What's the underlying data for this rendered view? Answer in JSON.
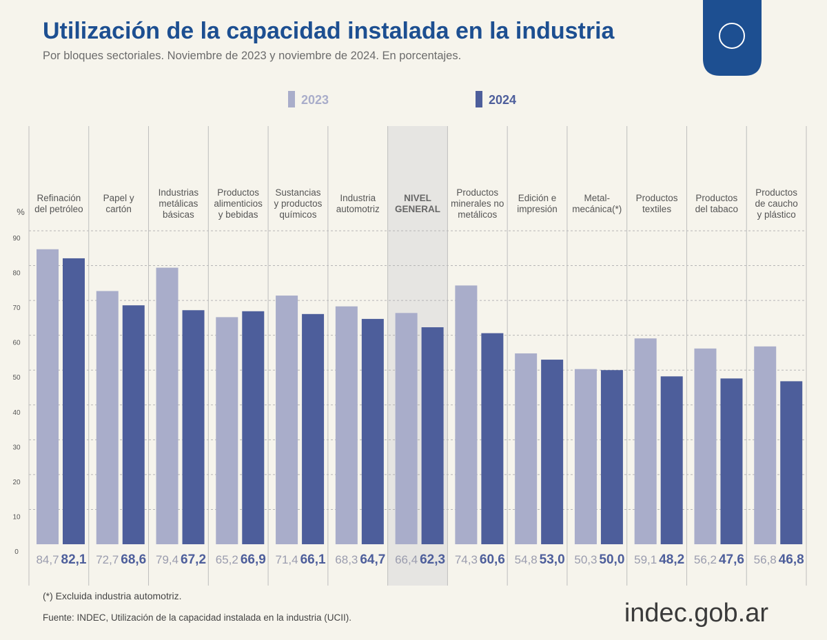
{
  "chart_data": {
    "type": "bar",
    "title": "Utilización de la capacidad instalada en la industria",
    "subtitle": "Por bloques sectoriales. Noviembre de 2023 y noviembre de 2024. En porcentajes.",
    "y_label": "%",
    "categories": [
      "Refinación\ndel petróleo",
      "Papel y\ncartón",
      "Industrias\nmetálicas\nbásicas",
      "Productos\nalimenticios\ny bebidas",
      "Sustancias\ny productos\nquímicos",
      "Industria\nautomotriz",
      "NIVEL\nGENERAL",
      "Productos\nminerales no\nmetálicos",
      "Edición e\nimpresión",
      "Metal-\nmecánica(*)",
      "Productos\ntextiles",
      "Productos\ndel tabaco",
      "Productos\nde caucho\ny plástico"
    ],
    "highlight_index": 6,
    "series": [
      {
        "name": "2023",
        "color": "#a9adca",
        "values": [
          84.7,
          72.7,
          79.4,
          65.2,
          71.4,
          68.3,
          66.4,
          74.3,
          54.8,
          50.3,
          59.1,
          56.2,
          56.8
        ],
        "value_labels": [
          "84,7",
          "72,7",
          "79,4",
          "65,2",
          "71,4",
          "68,3",
          "66,4",
          "74,3",
          "54,8",
          "50,3",
          "59,1",
          "56,2",
          "56,8"
        ]
      },
      {
        "name": "2024",
        "color": "#4d5e9b",
        "values": [
          82.1,
          68.6,
          67.2,
          66.9,
          66.1,
          64.7,
          62.3,
          60.6,
          53.0,
          50.0,
          48.2,
          47.6,
          46.8
        ],
        "value_labels": [
          "82,1",
          "68,6",
          "67,2",
          "66,9",
          "66,1",
          "64,7",
          "62,3",
          "60,6",
          "53,0",
          "50,0",
          "48,2",
          "47,6",
          "46,8"
        ]
      }
    ],
    "ylim": [
      0,
      90
    ],
    "yticks": [
      0,
      10,
      20,
      30,
      40,
      50,
      60,
      70,
      80,
      90
    ],
    "grid": true,
    "note": "(*) Excluida industria automotriz.",
    "source": "Fuente: INDEC, Utilización de la capacidad instalada en la industria (UCII).",
    "brand": "indec.gob.ar"
  }
}
